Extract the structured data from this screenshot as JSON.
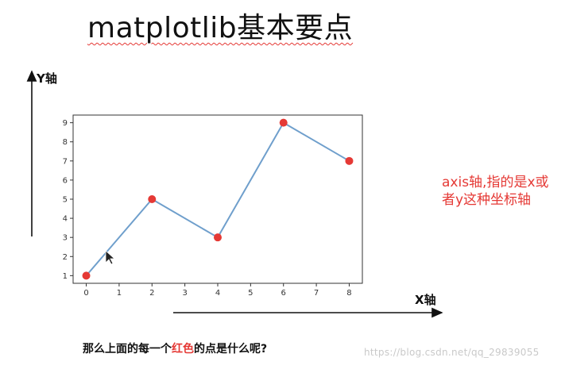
{
  "slide": {
    "title": "matplotlib基本要点",
    "y_axis_label": "Y轴",
    "x_axis_label": "X轴",
    "note": "axis轴,指的是x或者y这种坐标轴",
    "caption_before": "那么上面的每一个",
    "caption_highlight": "红色",
    "caption_after": "的点是什么呢?",
    "watermark": "https://blog.csdn.net/qq_29839055"
  },
  "colors": {
    "line": "#6f9fcc",
    "point": "#e53935",
    "note": "#e53935"
  },
  "chart_data": {
    "type": "line",
    "x": [
      0,
      2,
      4,
      6,
      8
    ],
    "y": [
      1,
      5,
      3,
      9,
      7
    ],
    "xlim": [
      -0.4,
      8.4
    ],
    "ylim": [
      0.6,
      9.4
    ],
    "xticks": [
      0,
      1,
      2,
      3,
      4,
      5,
      6,
      7,
      8
    ],
    "yticks": [
      1,
      2,
      3,
      4,
      5,
      6,
      7,
      8,
      9
    ],
    "markers": "red filled circles",
    "grid": false
  }
}
